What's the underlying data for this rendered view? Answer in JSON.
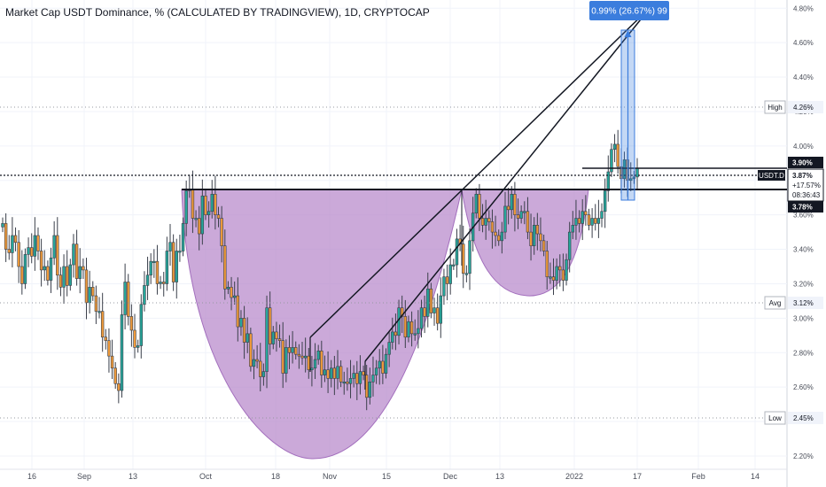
{
  "title": "Market Cap USDT Dominance, % (CALCULATED BY TRADINGVIEW), 1D, CRYPTOCAP",
  "measure_label": "0.99% (26.67%) 99",
  "labels": {
    "high_name": "High",
    "high_value": "4.26%",
    "avg_name": "Avg",
    "avg_value": "3.12%",
    "low_name": "Low",
    "low_value": "2.45%",
    "symbol": "USDT.D",
    "price_top": "3.90%",
    "price_current": "3.87%",
    "change": "+17.57%",
    "countdown": "08:36:43",
    "price_bottom": "3.78%"
  },
  "colors": {
    "up": "#26a69a",
    "down": "#ef9a3a",
    "cup_fill": "#b98ccc",
    "measure": "#3b7ddd",
    "line": "#131722"
  },
  "chart_data": {
    "type": "candlestick",
    "title": "Market Cap USDT Dominance, % (CALCULATED BY TRADINGVIEW), 1D, CRYPTOCAP",
    "y_unit": "%",
    "yticks": [
      "4.80%",
      "4.60%",
      "4.40%",
      "4.20%",
      "4.00%",
      "3.80%",
      "3.60%",
      "3.40%",
      "3.20%",
      "3.00%",
      "2.80%",
      "2.60%",
      "2.40%",
      "2.20%"
    ],
    "xticks": [
      "16",
      "Sep",
      "13",
      "Oct",
      "18",
      "Nov",
      "15",
      "Dec",
      "13",
      "2022",
      "17",
      "Feb",
      "14"
    ],
    "ylim": [
      2.2,
      4.86
    ],
    "grid": true,
    "series": [
      {
        "close": [
          3.55,
          3.4,
          3.38,
          3.48,
          3.44,
          3.3,
          3.2,
          3.37,
          3.41,
          3.36,
          3.48,
          3.39,
          3.28,
          3.3,
          3.22,
          3.35,
          3.48,
          3.25,
          3.18,
          3.3,
          3.19,
          3.31,
          3.43,
          3.23,
          3.3,
          3.28,
          3.09,
          3.18,
          3.13,
          3.04,
          3.04,
          2.89,
          2.87,
          2.78,
          2.71,
          2.62,
          2.58,
          3.02,
          3.21,
          3.01,
          2.93,
          2.83,
          2.84,
          3.08,
          3.19,
          3.25,
          3.33,
          3.33,
          3.2,
          3.21,
          3.2,
          3.39,
          3.44,
          3.21,
          3.39,
          3.39,
          3.55,
          3.74,
          3.75,
          3.58,
          3.58,
          3.49,
          3.71,
          3.6,
          3.62,
          3.72,
          3.6,
          3.58,
          3.42,
          3.17,
          3.18,
          3.12,
          3.13,
          2.95,
          3.0,
          2.86,
          2.91,
          2.72,
          2.76,
          2.75,
          2.66,
          2.69,
          3.06,
          2.85,
          2.92,
          2.88,
          2.87,
          2.68,
          2.83,
          2.8,
          2.83,
          2.79,
          2.78,
          2.77,
          2.78,
          2.7,
          2.71,
          2.76,
          2.81,
          2.67,
          2.7,
          2.65,
          2.71,
          2.65,
          2.72,
          2.63,
          2.63,
          2.62,
          2.65,
          2.68,
          2.62,
          2.69,
          2.67,
          2.54,
          2.63,
          2.67,
          2.71,
          2.75,
          2.68,
          2.79,
          2.86,
          2.92,
          2.9,
          3.06,
          3.01,
          2.89,
          2.98,
          2.91,
          2.91,
          2.94,
          3.06,
          3.01,
          3.17,
          3.03,
          3.06,
          2.97,
          3.13,
          3.24,
          3.2,
          3.31,
          3.31,
          3.46,
          3.43,
          3.26,
          3.26,
          3.45,
          3.61,
          3.72,
          3.58,
          3.54,
          3.58,
          3.56,
          3.5,
          3.48,
          3.45,
          3.5,
          3.65,
          3.63,
          3.72,
          3.6,
          3.58,
          3.62,
          3.62,
          3.5,
          3.42,
          3.54,
          3.49,
          3.45,
          3.39,
          3.24,
          3.24,
          3.22,
          3.3,
          3.28,
          3.22,
          3.34,
          3.5,
          3.54,
          3.58,
          3.55,
          3.62,
          3.6,
          3.54,
          3.58,
          3.55,
          3.58,
          3.62,
          3.74,
          3.85,
          3.98,
          4.01,
          3.88,
          3.81,
          3.92,
          3.8,
          3.81,
          3.82,
          3.87
        ]
      }
    ]
  }
}
